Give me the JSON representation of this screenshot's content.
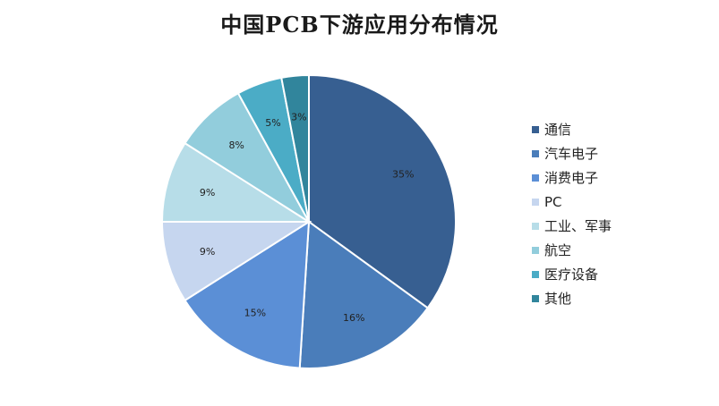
{
  "chart_data": {
    "type": "pie",
    "title": "中国PCB下游应用分布情况",
    "categories": [
      "通信",
      "汽车电子",
      "消费电子",
      "PC",
      "工业、军事",
      "航空",
      "医疗设备",
      "其他"
    ],
    "values": [
      35,
      16,
      15,
      9,
      9,
      8,
      5,
      3
    ],
    "value_labels": [
      "35%",
      "16%",
      "15%",
      "9%",
      "9%",
      "8%",
      "5%",
      "3%"
    ],
    "colors": [
      "#375f91",
      "#4a7dba",
      "#5b8fd6",
      "#c6d6ef",
      "#b7dde8",
      "#92cddc",
      "#4bacc6",
      "#31859c"
    ],
    "legend_position": "right"
  }
}
